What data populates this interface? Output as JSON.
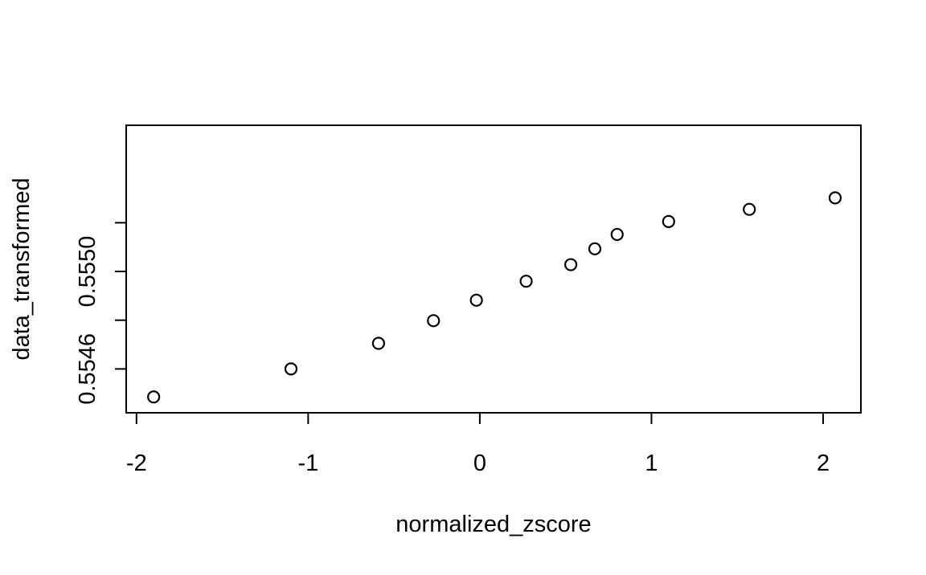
{
  "chart_data": {
    "type": "scatter",
    "title": "",
    "xlabel": "normalized_zscore",
    "ylabel": "data_transformed",
    "xlim": [
      -2.06,
      2.22
    ],
    "ylim": [
      0.55442,
      0.5556
    ],
    "x_ticks": [
      {
        "value": -2,
        "label": "-2"
      },
      {
        "value": -1,
        "label": "-1"
      },
      {
        "value": 0,
        "label": "0"
      },
      {
        "value": 1,
        "label": "1"
      },
      {
        "value": 2,
        "label": "2"
      }
    ],
    "y_ticks": [
      {
        "value": 0.5546,
        "label": "0.5546"
      },
      {
        "value": 0.5548,
        "label": ""
      },
      {
        "value": 0.555,
        "label": "0.5550"
      },
      {
        "value": 0.5552,
        "label": ""
      }
    ],
    "grid": false,
    "legend": "none",
    "marker": "open-circle",
    "points": [
      {
        "x": -1.9,
        "y": 0.554485
      },
      {
        "x": -1.1,
        "y": 0.5546
      },
      {
        "x": -0.59,
        "y": 0.554705
      },
      {
        "x": -0.27,
        "y": 0.554798
      },
      {
        "x": -0.02,
        "y": 0.554882
      },
      {
        "x": 0.27,
        "y": 0.55496
      },
      {
        "x": 0.53,
        "y": 0.555028
      },
      {
        "x": 0.67,
        "y": 0.555093
      },
      {
        "x": 0.8,
        "y": 0.555152
      },
      {
        "x": 1.1,
        "y": 0.555205
      },
      {
        "x": 1.57,
        "y": 0.555255
      },
      {
        "x": 2.07,
        "y": 0.555302
      }
    ]
  }
}
